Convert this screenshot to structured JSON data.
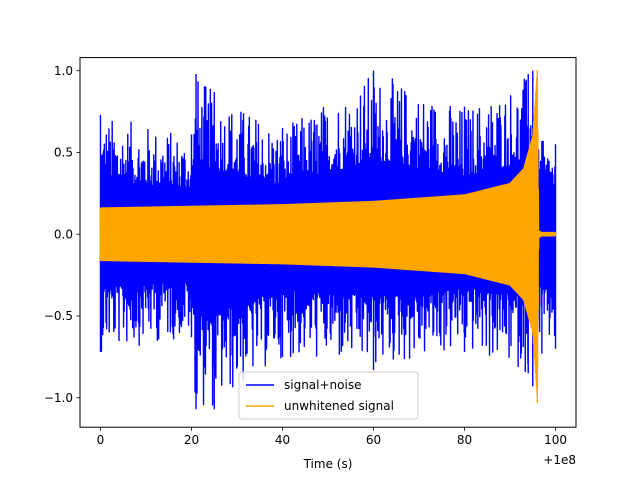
{
  "chart_data": {
    "type": "line",
    "title": "",
    "xlabel": "Time (s)",
    "ylabel": "",
    "x_offset_label": "+1e8",
    "xlim": [
      -4.5,
      104.5
    ],
    "ylim": [
      -1.18,
      1.08
    ],
    "xticks": [
      0,
      20,
      40,
      60,
      80,
      100
    ],
    "xtick_labels": [
      "0",
      "20",
      "40",
      "60",
      "80",
      "100"
    ],
    "yticks": [
      1.0,
      0.5,
      0.0,
      -0.5,
      -1.0
    ],
    "ytick_labels": [
      "1.0",
      "0.5",
      "0.0",
      "−0.5",
      "−1.0"
    ],
    "grid": false,
    "legend_position": "lower-center",
    "series": [
      {
        "name": "signal+noise",
        "color": "#0000ff",
        "description_points": {
          "x": [
            0,
            20,
            21,
            25,
            40,
            60,
            80,
            94,
            95,
            96,
            97,
            100
          ],
          "y_max": [
            0.73,
            0.61,
            0.98,
            0.87,
            0.65,
            1.0,
            0.78,
            0.98,
            1.0,
            0.55,
            0.57,
            0.55
          ],
          "y_min": [
            -0.72,
            -0.63,
            -1.07,
            -1.07,
            -0.75,
            -0.83,
            -0.72,
            -0.85,
            -0.93,
            -0.65,
            -0.73,
            -0.7
          ]
        }
      },
      {
        "name": "unwhitened signal",
        "color": "#ffa500",
        "envelope": {
          "x": [
            0,
            20,
            40,
            60,
            80,
            90,
            93,
            95,
            96,
            96.3,
            97,
            100
          ],
          "amplitude": [
            0.16,
            0.17,
            0.18,
            0.2,
            0.24,
            0.31,
            0.4,
            0.6,
            1.0,
            0.02,
            0.01,
            0.01
          ]
        },
        "peak": {
          "x": 96,
          "y_max": 1.0,
          "y_min": -1.03
        }
      }
    ]
  }
}
